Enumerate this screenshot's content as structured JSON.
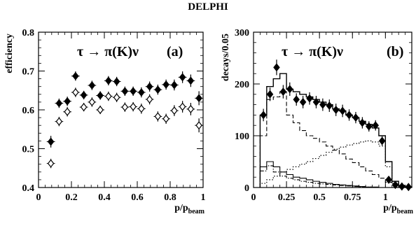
{
  "figure_title": "DELPHI",
  "chart_data": [
    {
      "type": "scatter",
      "panel_label": "(a)",
      "annotation": "τ → π(K)ν",
      "ylabel": "efficiency",
      "xlabel": "p/p",
      "xlabel_sub": "beam",
      "xlim": [
        0,
        1
      ],
      "ylim": [
        0.4,
        0.8
      ],
      "x_ticks": [
        "0",
        "0.2",
        "0.4",
        "0.6",
        "0.8",
        "1"
      ],
      "x_tick_values": [
        0,
        0.2,
        0.4,
        0.6,
        0.8,
        1
      ],
      "y_ticks": [
        "0.4",
        "0.5",
        "0.6",
        "0.7",
        "0.8"
      ],
      "y_tick_values": [
        0.4,
        0.5,
        0.6,
        0.7,
        0.8
      ],
      "grid": false,
      "x": [
        0.075,
        0.125,
        0.175,
        0.225,
        0.275,
        0.325,
        0.375,
        0.425,
        0.475,
        0.525,
        0.575,
        0.625,
        0.675,
        0.725,
        0.775,
        0.825,
        0.875,
        0.925,
        0.975
      ],
      "series": [
        {
          "marker": "filled-diamond",
          "values": [
            0.518,
            0.617,
            0.622,
            0.687,
            0.638,
            0.663,
            0.637,
            0.675,
            0.673,
            0.648,
            0.648,
            0.645,
            0.66,
            0.652,
            0.665,
            0.664,
            0.684,
            0.675,
            0.63
          ],
          "errors": [
            0.015,
            0.012,
            0.012,
            0.012,
            0.011,
            0.012,
            0.011,
            0.012,
            0.012,
            0.012,
            0.012,
            0.013,
            0.013,
            0.013,
            0.013,
            0.014,
            0.015,
            0.016,
            0.018
          ]
        },
        {
          "marker": "open-diamond",
          "values": [
            0.462,
            0.57,
            0.595,
            0.645,
            0.607,
            0.62,
            0.6,
            0.635,
            0.632,
            0.607,
            0.608,
            0.603,
            0.627,
            0.583,
            0.577,
            0.598,
            0.608,
            0.602,
            0.56
          ],
          "errors": [
            0.012,
            0.012,
            0.012,
            0.012,
            0.011,
            0.012,
            0.011,
            0.012,
            0.012,
            0.012,
            0.012,
            0.013,
            0.013,
            0.013,
            0.013,
            0.014,
            0.015,
            0.016,
            0.018
          ]
        }
      ]
    },
    {
      "type": "bar",
      "panel_label": "(b)",
      "annotation": "τ → π(K)ν",
      "ylabel": "decays/0.05",
      "xlabel": "p/p",
      "xlabel_sub": "beam",
      "xlim": [
        0,
        1.2
      ],
      "ylim": [
        0,
        300
      ],
      "x_ticks": [
        "0",
        "0.25",
        "0.5",
        "0.75",
        "1"
      ],
      "x_tick_values": [
        0,
        0.25,
        0.5,
        0.75,
        1
      ],
      "y_ticks": [
        "0",
        "100",
        "200",
        "300"
      ],
      "y_tick_values": [
        0,
        100,
        200,
        300
      ],
      "grid": false,
      "bin_edges": [
        0.05,
        0.1,
        0.15,
        0.2,
        0.25,
        0.3,
        0.35,
        0.4,
        0.45,
        0.5,
        0.55,
        0.6,
        0.65,
        0.7,
        0.75,
        0.8,
        0.85,
        0.9,
        0.95,
        1.0,
        1.05,
        1.1,
        1.15,
        1.2
      ],
      "histograms": [
        {
          "style": "solid",
          "values": [
            140,
            195,
            210,
            220,
            190,
            185,
            180,
            175,
            170,
            165,
            160,
            152,
            148,
            140,
            135,
            128,
            122,
            115,
            100,
            50,
            12,
            4,
            1
          ]
        },
        {
          "style": "dashed",
          "values": [
            100,
            170,
            175,
            185,
            140,
            125,
            110,
            100,
            95,
            88,
            80,
            72,
            65,
            55,
            48,
            40,
            32,
            25,
            18,
            10,
            5,
            2,
            0
          ]
        },
        {
          "style": "dotted",
          "values": [
            8,
            15,
            22,
            30,
            35,
            40,
            45,
            50,
            56,
            62,
            68,
            74,
            78,
            82,
            85,
            88,
            90,
            88,
            80,
            40,
            8,
            2,
            0
          ]
        },
        {
          "style": "solid-thin",
          "values": [
            40,
            50,
            40,
            30,
            25,
            20,
            18,
            15,
            12,
            10,
            8,
            6,
            5,
            4,
            3,
            2,
            1,
            1,
            0,
            0,
            0,
            0,
            0
          ]
        },
        {
          "style": "dash-dot",
          "values": [
            32,
            42,
            30,
            22,
            18,
            15,
            12,
            10,
            8,
            7,
            6,
            5,
            4,
            3,
            2,
            1,
            1,
            0,
            0,
            0,
            0,
            0,
            0
          ]
        }
      ],
      "points": {
        "marker": "filled-diamond",
        "x": [
          0.075,
          0.125,
          0.175,
          0.225,
          0.275,
          0.325,
          0.375,
          0.425,
          0.475,
          0.525,
          0.575,
          0.625,
          0.675,
          0.725,
          0.775,
          0.825,
          0.875,
          0.925,
          0.975,
          1.025,
          1.075,
          1.125,
          1.175
        ],
        "values": [
          140,
          180,
          232,
          185,
          190,
          170,
          165,
          172,
          165,
          160,
          158,
          150,
          148,
          140,
          135,
          125,
          118,
          120,
          90,
          15,
          5,
          2,
          1
        ],
        "errors": [
          12,
          13,
          15,
          13,
          13,
          12,
          12,
          12,
          12,
          12,
          12,
          12,
          12,
          11,
          11,
          11,
          10,
          10,
          9,
          4,
          2,
          1,
          1
        ]
      }
    }
  ]
}
